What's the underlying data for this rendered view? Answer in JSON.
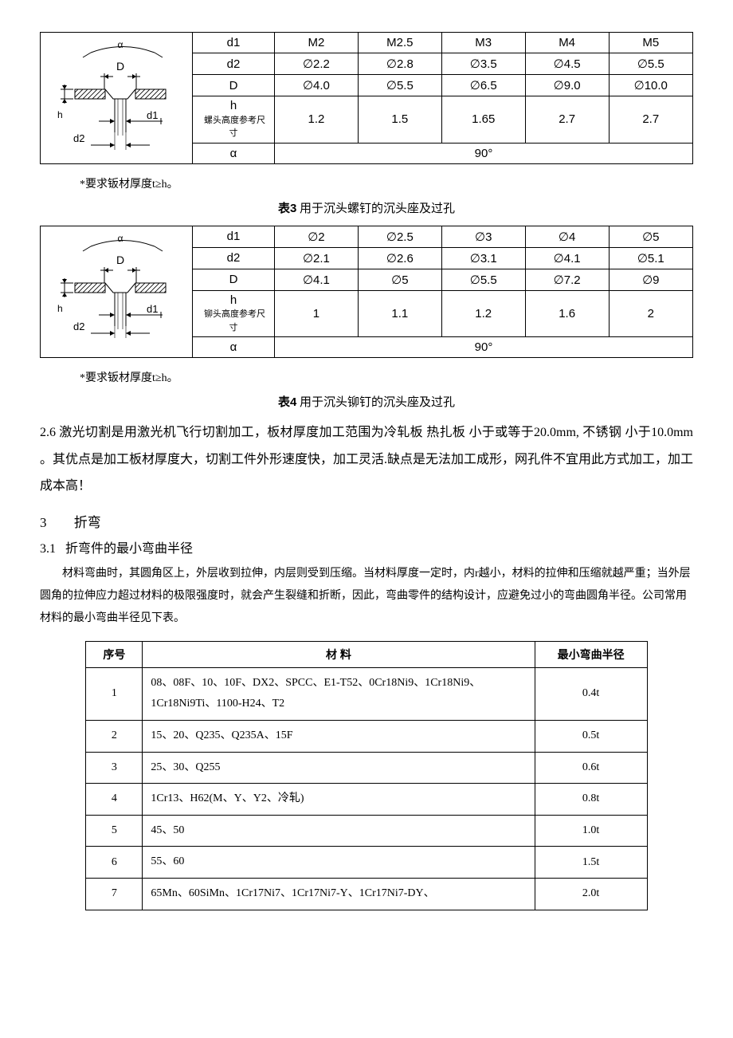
{
  "table3": {
    "headers": [
      "d1",
      "d2",
      "D",
      "h",
      "α"
    ],
    "h_sub": "螺头高度参考尺寸",
    "cols": [
      "M2",
      "M2.5",
      "M3",
      "M4",
      "M5"
    ],
    "d2": [
      "∅2.2",
      "∅2.8",
      "∅3.5",
      "∅4.5",
      "∅5.5"
    ],
    "D": [
      "∅4.0",
      "∅5.5",
      "∅6.5",
      "∅9.0",
      "∅10.0"
    ],
    "h": [
      "1.2",
      "1.5",
      "1.65",
      "2.7",
      "2.7"
    ],
    "alpha": "90°",
    "note": "*要求钣材厚度t≥h。",
    "caption_bold": "表3",
    "caption_rest": " 用于沉头螺钉的沉头座及过孔"
  },
  "table4": {
    "headers": [
      "d1",
      "d2",
      "D",
      "h",
      "α"
    ],
    "h_sub": "铆头高度参考尺寸",
    "cols": [
      "∅2",
      "∅2.5",
      "∅3",
      "∅4",
      "∅5"
    ],
    "d2": [
      "∅2.1",
      "∅2.6",
      "∅3.1",
      "∅4.1",
      "∅5.1"
    ],
    "D": [
      "∅4.1",
      "∅5",
      "∅5.5",
      "∅7.2",
      "∅9"
    ],
    "h": [
      "1",
      "1.1",
      "1.2",
      "1.6",
      "2"
    ],
    "alpha": "90°",
    "note": "*要求钣材厚度t≥h。",
    "caption_bold": "表4",
    "caption_rest": " 用于沉头铆钉的沉头座及过孔"
  },
  "para_26": "2.6 激光切割是用激光机飞行切割加工，板材厚度加工范围为冷轧板 热扎板 小于或等于20.0mm, 不锈钢 小于10.0mm 。其优点是加工板材厚度大，切割工件外形速度快，加工灵活.缺点是无法加工成形，网孔件不宜用此方式加工，加工成本高！",
  "sec3_num": "3",
  "sec3_title": "折弯",
  "sec31_num": "3.1",
  "sec31_title": "折弯件的最小弯曲半径",
  "body_31": "材料弯曲时，其圆角区上，外层收到拉伸，内层则受到压缩。当材料厚度一定时，内r越小，材料的拉伸和压缩就越严重；当外层圆角的拉伸应力超过材料的极限强度时，就会产生裂缝和折断，因此，弯曲零件的结构设计，应避免过小的弯曲圆角半径。公司常用材料的最小弯曲半径见下表。",
  "mat_table": {
    "head": [
      "序号",
      "材        料",
      "最小弯曲半径"
    ],
    "rows": [
      [
        "1",
        "08、08F、10、10F、DX2、SPCC、E1-T52、0Cr18Ni9、1Cr18Ni9、1Cr18Ni9Ti、1100-H24、T2",
        "0.4t"
      ],
      [
        "2",
        "15、20、Q235、Q235A、15F",
        "0.5t"
      ],
      [
        "3",
        "25、30、Q255",
        "0.6t"
      ],
      [
        "4",
        "1Cr13、H62(M、Y、Y2、冷轧)",
        "0.8t"
      ],
      [
        "5",
        "45、50",
        "1.0t"
      ],
      [
        "6",
        "55、60",
        "1.5t"
      ],
      [
        "7",
        "65Mn、60SiMn、1Cr17Ni7、1Cr17Ni7-Y、1Cr17Ni7-DY、",
        "2.0t"
      ]
    ]
  },
  "diagram_labels": {
    "alpha": "α",
    "D": "D",
    "d1": "d1",
    "d2": "d2",
    "h": "h"
  }
}
